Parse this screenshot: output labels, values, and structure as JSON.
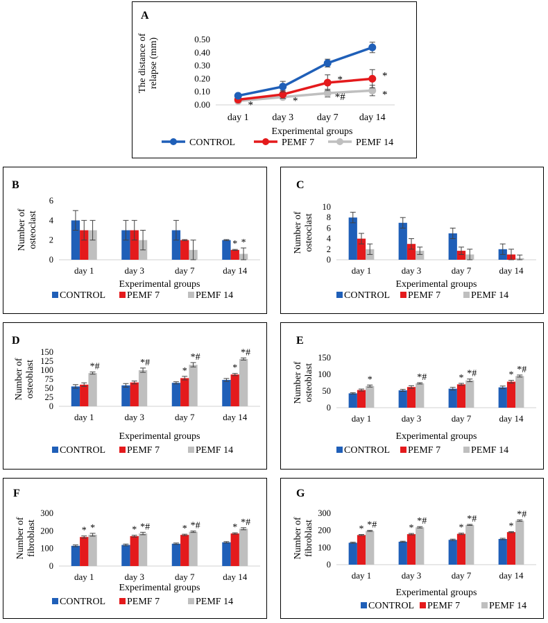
{
  "legend_labels": [
    "CONTROL",
    "PEMF 7",
    "PEMF 14"
  ],
  "colors": {
    "control": "#1F5FB8",
    "pemf7": "#E41A1C",
    "pemf14": "#BFBFBF",
    "error": "#404040"
  },
  "chart_data": [
    {
      "id": "A",
      "type": "line",
      "panel_label": "A",
      "categories": [
        "day 1",
        "day 3",
        "day 7",
        "day 14"
      ],
      "series": [
        {
          "name": "CONTROL",
          "values": [
            0.07,
            0.14,
            0.32,
            0.44
          ],
          "errors": [
            0.01,
            0.04,
            0.03,
            0.04
          ],
          "annotations": [
            "",
            "",
            "",
            ""
          ]
        },
        {
          "name": "PEMF 7",
          "values": [
            0.04,
            0.08,
            0.17,
            0.2
          ],
          "errors": [
            0.01,
            0.03,
            0.06,
            0.07
          ],
          "annotations": [
            "",
            "",
            "*",
            "*"
          ]
        },
        {
          "name": "PEMF 14",
          "values": [
            0.03,
            0.06,
            0.09,
            0.11
          ],
          "errors": [
            0.01,
            0.01,
            0.03,
            0.04
          ],
          "annotations": [
            "*",
            "*",
            "*#",
            "*"
          ]
        }
      ],
      "xlabel": "Experimental groups",
      "ylabel": "The distance of relapse (mm)",
      "ylim": [
        0,
        0.5
      ],
      "yticks": [
        "0.00",
        "0.10",
        "0.20",
        "0.30",
        "0.40",
        "0.50"
      ]
    },
    {
      "id": "B",
      "type": "bar",
      "panel_label": "B",
      "categories": [
        "day 1",
        "day 3",
        "day 7",
        "day 14"
      ],
      "series": [
        {
          "name": "CONTROL",
          "values": [
            4,
            3,
            3,
            2
          ],
          "errors": [
            1,
            1,
            1,
            0.05
          ],
          "annotations": [
            "",
            "",
            "",
            ""
          ]
        },
        {
          "name": "PEMF 7",
          "values": [
            3,
            3,
            2,
            1
          ],
          "errors": [
            1,
            1,
            0.05,
            0.05
          ],
          "annotations": [
            "",
            "",
            "",
            "*"
          ]
        },
        {
          "name": "PEMF 14",
          "values": [
            3,
            2,
            1,
            0.6
          ],
          "errors": [
            1,
            1,
            1,
            0.6
          ],
          "annotations": [
            "",
            "",
            "",
            "*"
          ]
        }
      ],
      "xlabel": "Experimental groups",
      "ylabel": "Number of osteoclast",
      "ylim": [
        0,
        6
      ],
      "yticks": [
        "0",
        "2",
        "4",
        "6"
      ]
    },
    {
      "id": "C",
      "type": "bar",
      "panel_label": "C",
      "categories": [
        "day 1",
        "day 3",
        "day 7",
        "day 14"
      ],
      "series": [
        {
          "name": "CONTROL",
          "values": [
            8,
            7,
            5,
            2
          ],
          "errors": [
            1,
            1,
            1,
            1
          ],
          "annotations": [
            "",
            "",
            "",
            ""
          ]
        },
        {
          "name": "PEMF 7",
          "values": [
            4,
            3,
            1.7,
            1
          ],
          "errors": [
            1,
            1,
            0.7,
            1
          ],
          "annotations": [
            "",
            "",
            "",
            ""
          ]
        },
        {
          "name": "PEMF 14",
          "values": [
            2,
            1.7,
            1,
            0.3
          ],
          "errors": [
            1,
            0.7,
            1,
            0.6
          ],
          "annotations": [
            "",
            "",
            "",
            ""
          ]
        }
      ],
      "xlabel": "Experimental groups",
      "ylabel": "Number of osteoclast",
      "ylim": [
        0,
        10
      ],
      "yticks": [
        "0",
        "2",
        "4",
        "6",
        "8",
        "10"
      ]
    },
    {
      "id": "D",
      "type": "bar",
      "panel_label": "D",
      "categories": [
        "day 1",
        "day 3",
        "day 7",
        "day 14"
      ],
      "series": [
        {
          "name": "CONTROL",
          "values": [
            55,
            58,
            65,
            73
          ],
          "errors": [
            5,
            5,
            3,
            4
          ],
          "annotations": [
            "",
            "",
            "",
            ""
          ]
        },
        {
          "name": "PEMF 7",
          "values": [
            60,
            66,
            78,
            88
          ],
          "errors": [
            5,
            4,
            5,
            3
          ],
          "annotations": [
            "",
            "",
            "*",
            "*"
          ]
        },
        {
          "name": "PEMF 14",
          "values": [
            92,
            100,
            115,
            131
          ],
          "errors": [
            3,
            6,
            6,
            3
          ],
          "annotations": [
            "*#",
            "*#",
            "*#",
            "*#"
          ]
        }
      ],
      "xlabel": "Experimental groups",
      "ylabel": "Number of osteoblast",
      "ylim": [
        0,
        150
      ],
      "yticks": [
        "0",
        "25",
        "50",
        "75",
        "100",
        "125",
        "150"
      ]
    },
    {
      "id": "E",
      "type": "bar",
      "panel_label": "E",
      "categories": [
        "day 1",
        "day 3",
        "day 7",
        "day 14"
      ],
      "series": [
        {
          "name": "CONTROL",
          "values": [
            43,
            52,
            57,
            61
          ],
          "errors": [
            2,
            3,
            4,
            4
          ],
          "annotations": [
            "",
            "",
            "",
            ""
          ]
        },
        {
          "name": "PEMF 7",
          "values": [
            53,
            62,
            70,
            78
          ],
          "errors": [
            3,
            4,
            3,
            4
          ],
          "annotations": [
            "",
            "",
            "*",
            "*"
          ]
        },
        {
          "name": "PEMF 14",
          "values": [
            65,
            73,
            82,
            95
          ],
          "errors": [
            3,
            2,
            4,
            3
          ],
          "annotations": [
            "*",
            "*#",
            "*#",
            "*#"
          ]
        }
      ],
      "xlabel": "Experimental groups",
      "ylabel": "Number of osteoblast",
      "ylim": [
        0,
        150
      ],
      "yticks": [
        "0",
        "50",
        "100",
        "150"
      ]
    },
    {
      "id": "F",
      "type": "bar",
      "panel_label": "F",
      "categories": [
        "day 1",
        "day 3",
        "day 7",
        "day 14"
      ],
      "series": [
        {
          "name": "CONTROL",
          "values": [
            115,
            120,
            127,
            135
          ],
          "errors": [
            5,
            5,
            4,
            4
          ],
          "annotations": [
            "",
            "",
            "",
            ""
          ]
        },
        {
          "name": "PEMF 7",
          "values": [
            165,
            170,
            177,
            185
          ],
          "errors": [
            6,
            5,
            4,
            4
          ],
          "annotations": [
            "*",
            "*",
            "*",
            "*"
          ]
        },
        {
          "name": "PEMF 14",
          "values": [
            178,
            185,
            195,
            212
          ],
          "errors": [
            8,
            7,
            4,
            6
          ],
          "annotations": [
            "*",
            "*#",
            "*#",
            "*#"
          ]
        }
      ],
      "xlabel": "Experimental groups",
      "ylabel": "Number of fibroblast",
      "ylim": [
        0,
        300
      ],
      "yticks": [
        "0",
        "100",
        "200",
        "300"
      ]
    },
    {
      "id": "G",
      "type": "bar",
      "panel_label": "G",
      "categories": [
        "day 1",
        "day 3",
        "day 7",
        "day 14"
      ],
      "series": [
        {
          "name": "CONTROL",
          "values": [
            128,
            134,
            145,
            150
          ],
          "errors": [
            3,
            3,
            4,
            4
          ],
          "annotations": [
            "",
            "",
            "",
            ""
          ]
        },
        {
          "name": "PEMF 7",
          "values": [
            173,
            178,
            180,
            190
          ],
          "errors": [
            3,
            4,
            4,
            3
          ],
          "annotations": [
            "*",
            "*",
            "*",
            "*"
          ]
        },
        {
          "name": "PEMF 14",
          "values": [
            197,
            218,
            232,
            257
          ],
          "errors": [
            3,
            4,
            3,
            4
          ],
          "annotations": [
            "*#",
            "*#",
            "*#",
            "*#"
          ]
        }
      ],
      "xlabel": "Experimental groups",
      "ylabel": "Number of fibroblast",
      "ylim": [
        0,
        300
      ],
      "yticks": [
        "0",
        "100",
        "200",
        "300"
      ]
    }
  ]
}
